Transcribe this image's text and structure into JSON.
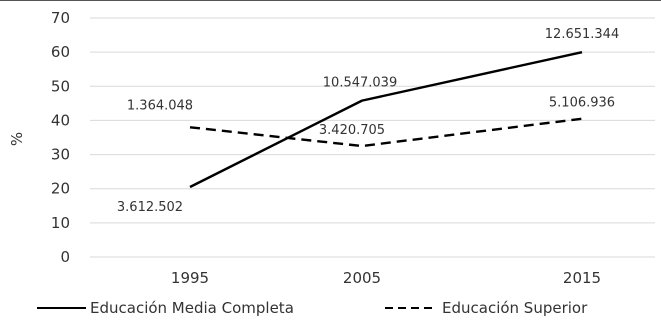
{
  "chart_data": {
    "type": "line",
    "x": [
      "1995",
      "2005",
      "2015"
    ],
    "ylabel": "%",
    "ylim": [
      0,
      70
    ],
    "yticks": [
      0,
      10,
      20,
      30,
      40,
      50,
      60,
      70
    ],
    "grid": "horizontal",
    "legend": "bottom",
    "series": [
      {
        "name": "Educación Media Completa",
        "style": "solid",
        "color": "#000000",
        "values": [
          20.5,
          45.8,
          60.0
        ],
        "labels": [
          "3.612.502",
          "10.547.039",
          "12.651.344"
        ]
      },
      {
        "name": "Educación Superior",
        "style": "dashed",
        "color": "#000000",
        "values": [
          38.0,
          32.5,
          40.5
        ],
        "labels": [
          "1.364.048",
          "3.420.705",
          "5.106.936"
        ]
      }
    ]
  }
}
